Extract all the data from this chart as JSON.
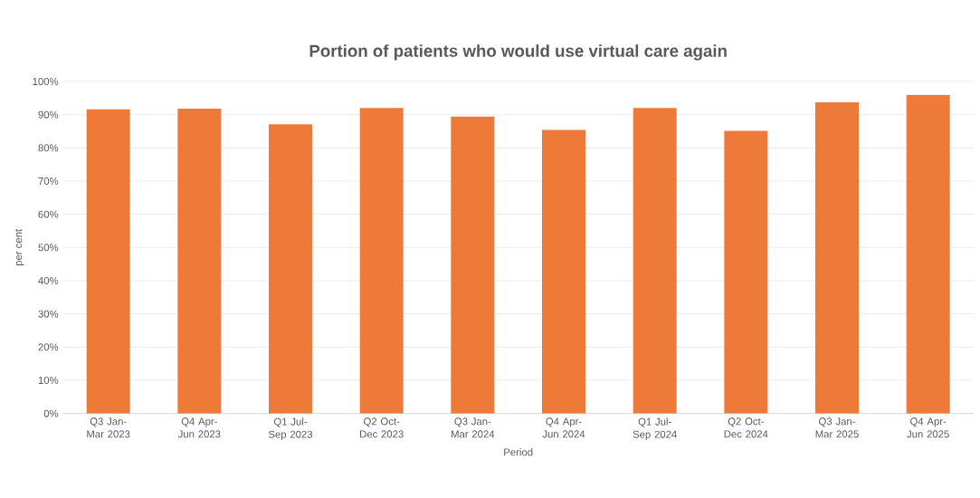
{
  "chart_data": {
    "type": "bar",
    "title": "Portion of patients who would use virtual care again",
    "xlabel": "Period",
    "ylabel": "per cent",
    "categories": [
      "Q3 Jan-Mar 2023",
      "Q4 Apr-Jun 2023",
      "Q1 Jul-Sep 2023",
      "Q2 Oct-Dec 2023",
      "Q3 Jan-Mar 2024",
      "Q4 Apr-Jun 2024",
      "Q1 Jul-Sep 2024",
      "Q2 Oct-Dec 2024",
      "Q3 Jan-Mar 2025",
      "Q4 Apr-Jun 2025"
    ],
    "values": [
      91.6,
      91.8,
      87.1,
      92,
      89.4,
      85.4,
      92,
      85.1,
      93.7,
      96
    ],
    "color": "#ee7a3a",
    "ylim": [
      0,
      100
    ],
    "yticks": [
      {
        "value": 0,
        "label": "0%"
      },
      {
        "value": 10,
        "label": "10%"
      },
      {
        "value": 20,
        "label": "20%"
      },
      {
        "value": 30,
        "label": "30%"
      },
      {
        "value": 40,
        "label": "40%"
      },
      {
        "value": 50,
        "label": "50%"
      },
      {
        "value": 60,
        "label": "60%"
      },
      {
        "value": 70,
        "label": "70%"
      },
      {
        "value": 80,
        "label": "80%"
      },
      {
        "value": 90,
        "label": "90%"
      },
      {
        "value": 100,
        "label": "100%"
      }
    ],
    "grid": "y"
  }
}
